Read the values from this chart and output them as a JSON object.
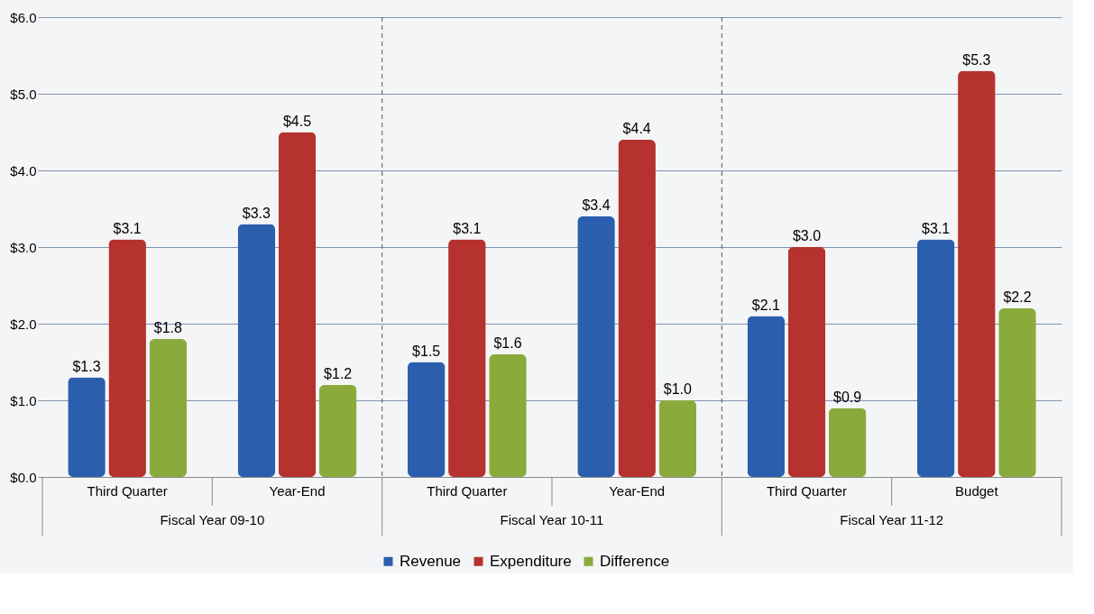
{
  "chart_data": {
    "type": "bar",
    "categories": [
      "Third Quarter",
      "Year-End",
      "Third Quarter",
      "Year-End",
      "Third Quarter",
      "Budget"
    ],
    "annotations": [
      "Fiscal Year 09-10",
      "Fiscal Year 10-11",
      "Fiscal Year 11-12"
    ],
    "series": [
      {
        "name": "Revenue",
        "color": "#2b5fae",
        "values": [
          1.3,
          3.3,
          1.5,
          3.4,
          2.1,
          3.1
        ],
        "value_labels": [
          "$1.3",
          "$3.3",
          "$1.5",
          "$3.4",
          "$2.1",
          "$3.1"
        ]
      },
      {
        "name": "Expenditure",
        "color": "#b5322e",
        "values": [
          3.1,
          4.5,
          3.1,
          4.4,
          3.0,
          5.3
        ],
        "value_labels": [
          "$3.1",
          "$4.5",
          "$3.1",
          "$4.4",
          "$3.0",
          "$5.3"
        ]
      },
      {
        "name": "Difference",
        "color": "#8aab3b",
        "values": [
          1.8,
          1.2,
          1.6,
          1.0,
          0.9,
          2.2
        ],
        "value_labels": [
          "$1.8",
          "$1.2",
          "$1.6",
          "$1.0",
          "$0.9",
          "$2.2"
        ]
      }
    ],
    "ylim": [
      0,
      6
    ],
    "yticks": [
      {
        "value": 0,
        "label": "$0.0"
      },
      {
        "value": 1,
        "label": "$1.0"
      },
      {
        "value": 2,
        "label": "$2.0"
      },
      {
        "value": 3,
        "label": "$3.0"
      },
      {
        "value": 4,
        "label": "$4.0"
      },
      {
        "value": 5,
        "label": "$5.0"
      },
      {
        "value": 6,
        "label": "$6.0"
      }
    ],
    "grid": "y",
    "legend": "bottom"
  }
}
